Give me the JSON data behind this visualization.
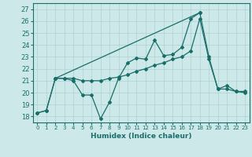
{
  "title": "",
  "xlabel": "Humidex (Indice chaleur)",
  "background_color": "#cce8e8",
  "line_color": "#1a6e6a",
  "grid_color": "#b0d0d0",
  "xlim": [
    -0.5,
    23.5
  ],
  "ylim": [
    17.5,
    27.5
  ],
  "xticks": [
    0,
    1,
    2,
    3,
    4,
    5,
    6,
    7,
    8,
    9,
    10,
    11,
    12,
    13,
    14,
    15,
    16,
    17,
    18,
    19,
    20,
    21,
    22,
    23
  ],
  "yticks": [
    18,
    19,
    20,
    21,
    22,
    23,
    24,
    25,
    26,
    27
  ],
  "series": [
    {
      "x": [
        0,
        1,
        2,
        3,
        4,
        5,
        6,
        7,
        8,
        9,
        10,
        11,
        12,
        13,
        14,
        15,
        16,
        17,
        18,
        19,
        20,
        21,
        22,
        23
      ],
      "y": [
        18.3,
        18.5,
        21.2,
        21.2,
        21.0,
        19.8,
        19.8,
        17.8,
        19.2,
        21.2,
        22.5,
        22.9,
        22.8,
        24.4,
        23.1,
        23.2,
        23.8,
        26.2,
        26.7,
        23.0,
        20.3,
        20.6,
        20.1,
        20.1
      ]
    },
    {
      "x": [
        0,
        1,
        2,
        3,
        4,
        5,
        6,
        7,
        8,
        9,
        10,
        11,
        12,
        13,
        14,
        15,
        16,
        17,
        18,
        19,
        20,
        21,
        22,
        23
      ],
      "y": [
        18.3,
        18.5,
        21.2,
        21.2,
        21.2,
        21.0,
        21.0,
        21.0,
        21.2,
        21.3,
        21.5,
        21.8,
        22.0,
        22.3,
        22.5,
        22.8,
        23.0,
        23.5,
        26.2,
        22.8,
        20.3,
        20.3,
        20.1,
        20.0
      ]
    },
    {
      "x": [
        2,
        18
      ],
      "y": [
        21.2,
        26.7
      ]
    }
  ]
}
